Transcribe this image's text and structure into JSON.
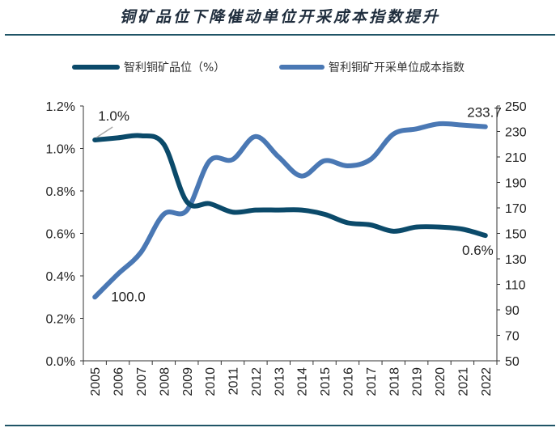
{
  "chart_data": {
    "type": "line",
    "title": "铜矿品位下降催动单位开采成本指数提升",
    "categories": [
      "2005",
      "2006",
      "2007",
      "2008",
      "2009",
      "2010",
      "2011",
      "2012",
      "2013",
      "2014",
      "2015",
      "2016",
      "2017",
      "2018",
      "2019",
      "2020",
      "2021",
      "2022"
    ],
    "series": [
      {
        "name": "智利铜矿品位（%）",
        "axis": "left",
        "color": "#0b4a6a",
        "values": [
          1.04,
          1.05,
          1.06,
          1.02,
          0.75,
          0.74,
          0.7,
          0.71,
          0.71,
          0.71,
          0.69,
          0.65,
          0.64,
          0.61,
          0.63,
          0.63,
          0.62,
          0.59
        ]
      },
      {
        "name": "智利铜矿开采单位成本指数",
        "axis": "right",
        "color": "#4a78b4",
        "values": [
          100.0,
          118,
          135,
          165,
          168,
          207,
          208,
          226,
          210,
          195,
          207,
          203,
          208,
          228,
          232,
          236,
          235,
          233.7
        ]
      }
    ],
    "y_left": {
      "min": 0,
      "max": 0.012,
      "ticks": [
        "0.0%",
        "0.2%",
        "0.4%",
        "0.6%",
        "0.8%",
        "1.0%",
        "1.2%"
      ]
    },
    "y_right": {
      "min": 50,
      "max": 250,
      "ticks": [
        "50",
        "70",
        "90",
        "110",
        "130",
        "150",
        "170",
        "190",
        "210",
        "230",
        "250"
      ]
    },
    "annotations": [
      {
        "text": "1.0%",
        "series": 0,
        "index": 0
      },
      {
        "text": "100.0",
        "series": 1,
        "index": 0
      },
      {
        "text": "233.7",
        "series": 1,
        "index": 17
      },
      {
        "text": "0.6%",
        "series": 0,
        "index": 17
      }
    ]
  }
}
